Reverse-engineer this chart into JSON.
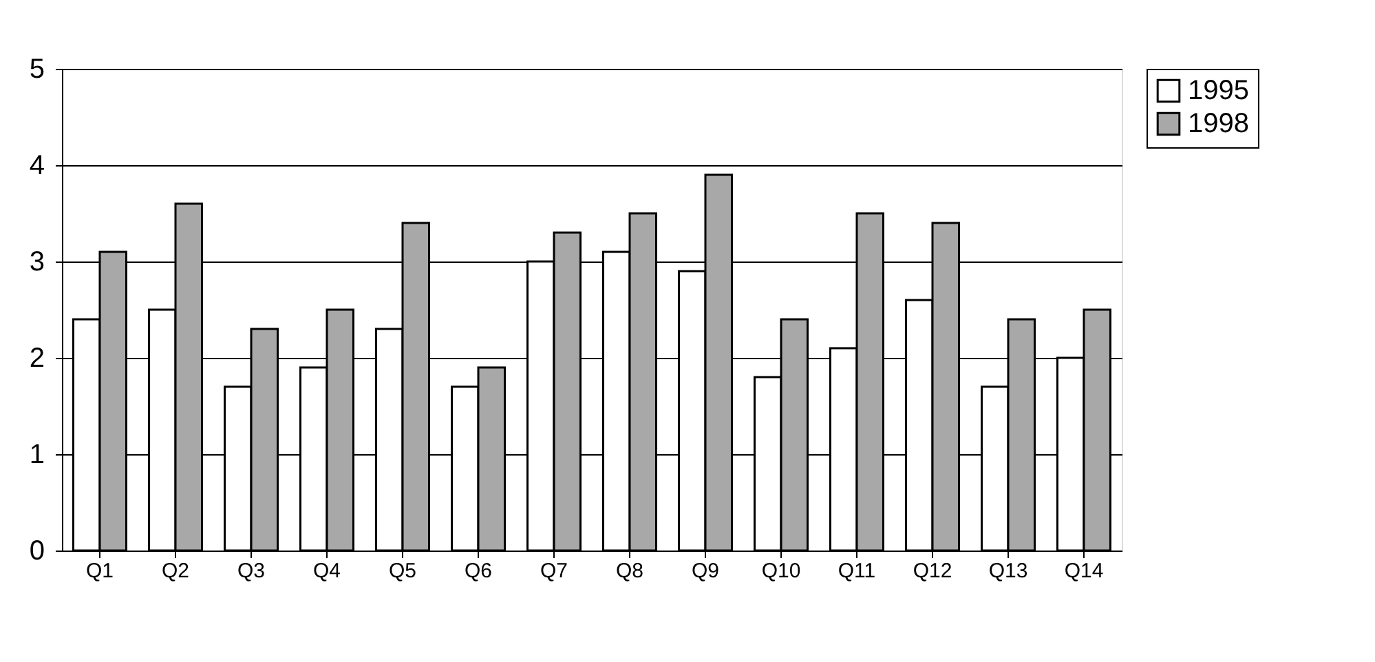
{
  "chart_data": {
    "type": "bar",
    "categories": [
      "Q1",
      "Q2",
      "Q3",
      "Q4",
      "Q5",
      "Q6",
      "Q7",
      "Q8",
      "Q9",
      "Q10",
      "Q11",
      "Q12",
      "Q13",
      "Q14"
    ],
    "series": [
      {
        "name": "1995",
        "color": "#ffffff",
        "values": [
          2.4,
          2.5,
          1.7,
          1.9,
          2.3,
          1.7,
          3.0,
          3.1,
          2.9,
          1.8,
          2.1,
          2.6,
          1.7,
          2.0
        ]
      },
      {
        "name": "1998",
        "color": "#a8a8a8",
        "values": [
          3.1,
          3.6,
          2.3,
          2.5,
          3.4,
          1.9,
          3.3,
          3.5,
          3.9,
          2.4,
          3.5,
          3.4,
          2.4,
          2.5
        ]
      }
    ],
    "ylim": [
      0,
      5
    ],
    "yticks": [
      0,
      1,
      2,
      3,
      4,
      5
    ],
    "grid": "y",
    "legend": "right"
  }
}
